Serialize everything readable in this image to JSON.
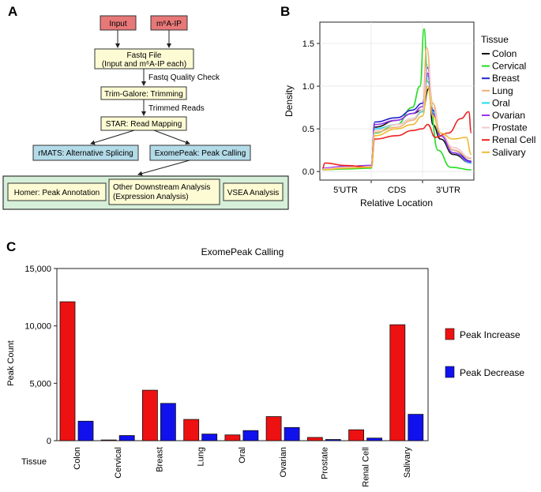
{
  "panels": {
    "a_label": "A",
    "b_label": "B",
    "c_label": "C"
  },
  "flowchart": {
    "input": "Input",
    "ip": "m⁶A-IP",
    "fastq_line1": "Fastq File",
    "fastq_line2": "(Input and m⁶A-IP each)",
    "qc_arrow": "Fastq Quality Check",
    "trim": "Trim-Galore: Trimming",
    "trimmed_arrow": "Trimmed Reads",
    "star": "STAR: Read Mapping",
    "rmats": "rMATS: Alternative Splicing",
    "exomepeak": "ExomePeak: Peak Calling",
    "homer": "Homer: Peak Annotation",
    "other_line1": "Other Downstream Analysis",
    "other_line2": "(Expression Analysis)",
    "vsea": "VSEA Analysis",
    "colors": {
      "pink": "#e87878",
      "yellow": "#fdfbd4",
      "blue": "#b3dbe8",
      "green": "#d6efd9"
    }
  },
  "chart_data": [
    {
      "type": "line",
      "xlabel": "Relative Location",
      "ylabel": "Density",
      "x_ticks": [
        "5'UTR",
        "CDS",
        "3'UTR"
      ],
      "y_ticks": [
        "0.0",
        "0.5",
        "1.0",
        "1.5"
      ],
      "ylim": [
        -0.1,
        1.75
      ],
      "xlim": [
        0,
        3
      ],
      "legend_title": "Tissue",
      "legend_position": "right",
      "series": [
        {
          "name": "Colon",
          "color": "#111111",
          "x": [
            0.05,
            0.5,
            1.0,
            1.07,
            1.5,
            1.8,
            2.0,
            2.12,
            2.2,
            2.35,
            2.6,
            2.95
          ],
          "y": [
            0.03,
            0.05,
            0.06,
            0.52,
            0.6,
            0.68,
            0.72,
            0.97,
            0.55,
            0.38,
            0.2,
            0.1
          ]
        },
        {
          "name": "Cervical",
          "color": "#22dd22",
          "x": [
            0.05,
            0.5,
            1.0,
            1.07,
            1.5,
            1.8,
            1.95,
            2.03,
            2.1,
            2.3,
            2.55,
            2.95
          ],
          "y": [
            0.02,
            0.03,
            0.04,
            0.45,
            0.55,
            0.75,
            1.0,
            1.67,
            1.05,
            0.25,
            0.05,
            0.02
          ]
        },
        {
          "name": "Breast",
          "color": "#2222cc",
          "x": [
            0.05,
            0.5,
            1.0,
            1.07,
            1.5,
            1.8,
            2.0,
            2.1,
            2.2,
            2.35,
            2.6,
            2.95
          ],
          "y": [
            0.04,
            0.06,
            0.07,
            0.58,
            0.63,
            0.72,
            0.8,
            1.22,
            0.72,
            0.45,
            0.25,
            0.12
          ]
        },
        {
          "name": "Lung",
          "color": "#f0b07a",
          "x": [
            0.05,
            0.5,
            1.0,
            1.07,
            1.5,
            1.8,
            2.0,
            2.08,
            2.2,
            2.35,
            2.6,
            2.95
          ],
          "y": [
            0.03,
            0.05,
            0.06,
            0.46,
            0.52,
            0.6,
            0.7,
            1.45,
            0.8,
            0.45,
            0.25,
            0.15
          ]
        },
        {
          "name": "Oral",
          "color": "#22ddee",
          "x": [
            0.05,
            0.5,
            1.0,
            1.07,
            1.5,
            1.8,
            2.0,
            2.1,
            2.2,
            2.35,
            2.6,
            2.95
          ],
          "y": [
            0.03,
            0.05,
            0.06,
            0.5,
            0.55,
            0.62,
            0.7,
            1.12,
            0.7,
            0.42,
            0.22,
            0.1
          ]
        },
        {
          "name": "Ovarian",
          "color": "#9933ee",
          "x": [
            0.05,
            0.5,
            1.0,
            1.07,
            1.5,
            1.8,
            2.0,
            2.1,
            2.2,
            2.35,
            2.6,
            2.95
          ],
          "y": [
            0.04,
            0.06,
            0.07,
            0.55,
            0.6,
            0.68,
            0.76,
            1.15,
            0.68,
            0.42,
            0.22,
            0.11
          ]
        },
        {
          "name": "Prostate",
          "color": "#f4c8c8",
          "x": [
            0.05,
            0.5,
            1.0,
            1.07,
            1.5,
            1.8,
            2.0,
            2.1,
            2.2,
            2.35,
            2.6,
            2.95
          ],
          "y": [
            0.03,
            0.05,
            0.06,
            0.48,
            0.55,
            0.62,
            0.72,
            1.25,
            0.75,
            0.45,
            0.28,
            0.16
          ]
        },
        {
          "name": "Renal Cell",
          "color": "#ee2222",
          "x": [
            0.05,
            0.1,
            0.5,
            1.0,
            1.07,
            1.5,
            1.8,
            2.0,
            2.1,
            2.25,
            2.5,
            2.75,
            2.9,
            2.95
          ],
          "y": [
            0.04,
            0.1,
            0.07,
            0.05,
            0.38,
            0.42,
            0.48,
            0.5,
            0.55,
            0.4,
            0.45,
            0.62,
            0.7,
            0.45
          ]
        },
        {
          "name": "Salivary",
          "color": "#eebb33",
          "x": [
            0.05,
            0.5,
            1.0,
            1.07,
            1.5,
            1.8,
            2.0,
            2.1,
            2.2,
            2.35,
            2.6,
            2.85,
            2.95
          ],
          "y": [
            0.02,
            0.04,
            0.05,
            0.42,
            0.5,
            0.55,
            0.65,
            1.0,
            0.65,
            0.45,
            0.38,
            0.4,
            0.2
          ]
        }
      ]
    },
    {
      "type": "bar",
      "title": "ExomePeak Calling",
      "xlabel": "Tissue",
      "ylabel": "Peak Count",
      "ylim": [
        0,
        15000
      ],
      "y_ticks": [
        "0",
        "5,000",
        "10,000",
        "15,000"
      ],
      "legend_position": "right",
      "categories": [
        "Colon",
        "Cervical",
        "Breast",
        "Lung",
        "Oral",
        "Ovarian",
        "Prostate",
        "Renal Cell",
        "Salivary"
      ],
      "series": [
        {
          "name": "Peak Increase",
          "color": "#ee1111",
          "values": [
            12100,
            60,
            4400,
            1850,
            500,
            2100,
            280,
            950,
            10100
          ]
        },
        {
          "name": "Peak Decrease",
          "color": "#1111ee",
          "values": [
            1700,
            450,
            3250,
            580,
            880,
            1150,
            100,
            230,
            2300
          ]
        }
      ]
    }
  ]
}
